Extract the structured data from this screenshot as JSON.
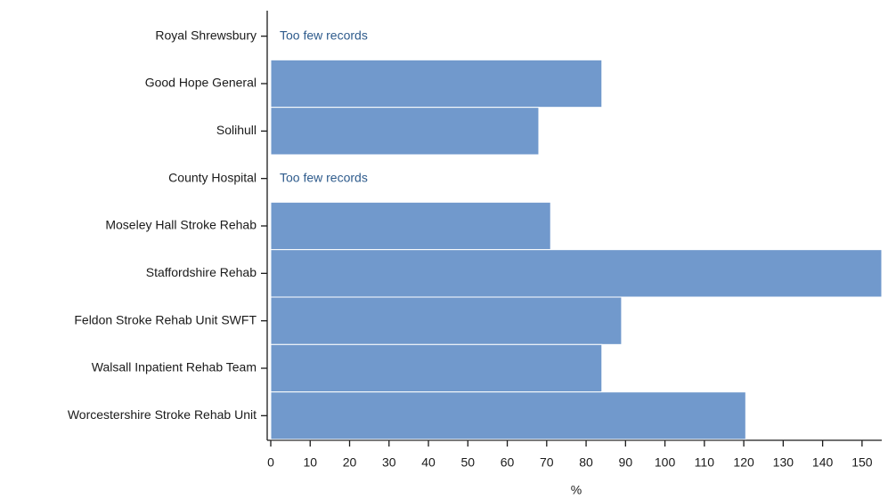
{
  "chart_data": {
    "type": "barh",
    "categories": [
      "Royal Shrewsbury",
      "Good Hope General",
      "Solihull",
      "County Hospital",
      "Moseley Hall Stroke Rehab",
      "Staffordshire Rehab",
      "Feldon Stroke Rehab Unit SWFT",
      "Walsall Inpatient Rehab Team",
      "Worcestershire Stroke Rehab Unit"
    ],
    "values": [
      null,
      84,
      68,
      null,
      71,
      155,
      89,
      84,
      120.5
    ],
    "value_labels": [
      "Too few records",
      null,
      null,
      "Too few records",
      null,
      null,
      null,
      null,
      null
    ],
    "color": "#7199cc",
    "xlabel": "%",
    "xlim": [
      0,
      155
    ],
    "xticks": [
      0,
      10,
      20,
      30,
      40,
      50,
      60,
      70,
      80,
      90,
      100,
      110,
      120,
      130,
      140,
      150
    ]
  }
}
